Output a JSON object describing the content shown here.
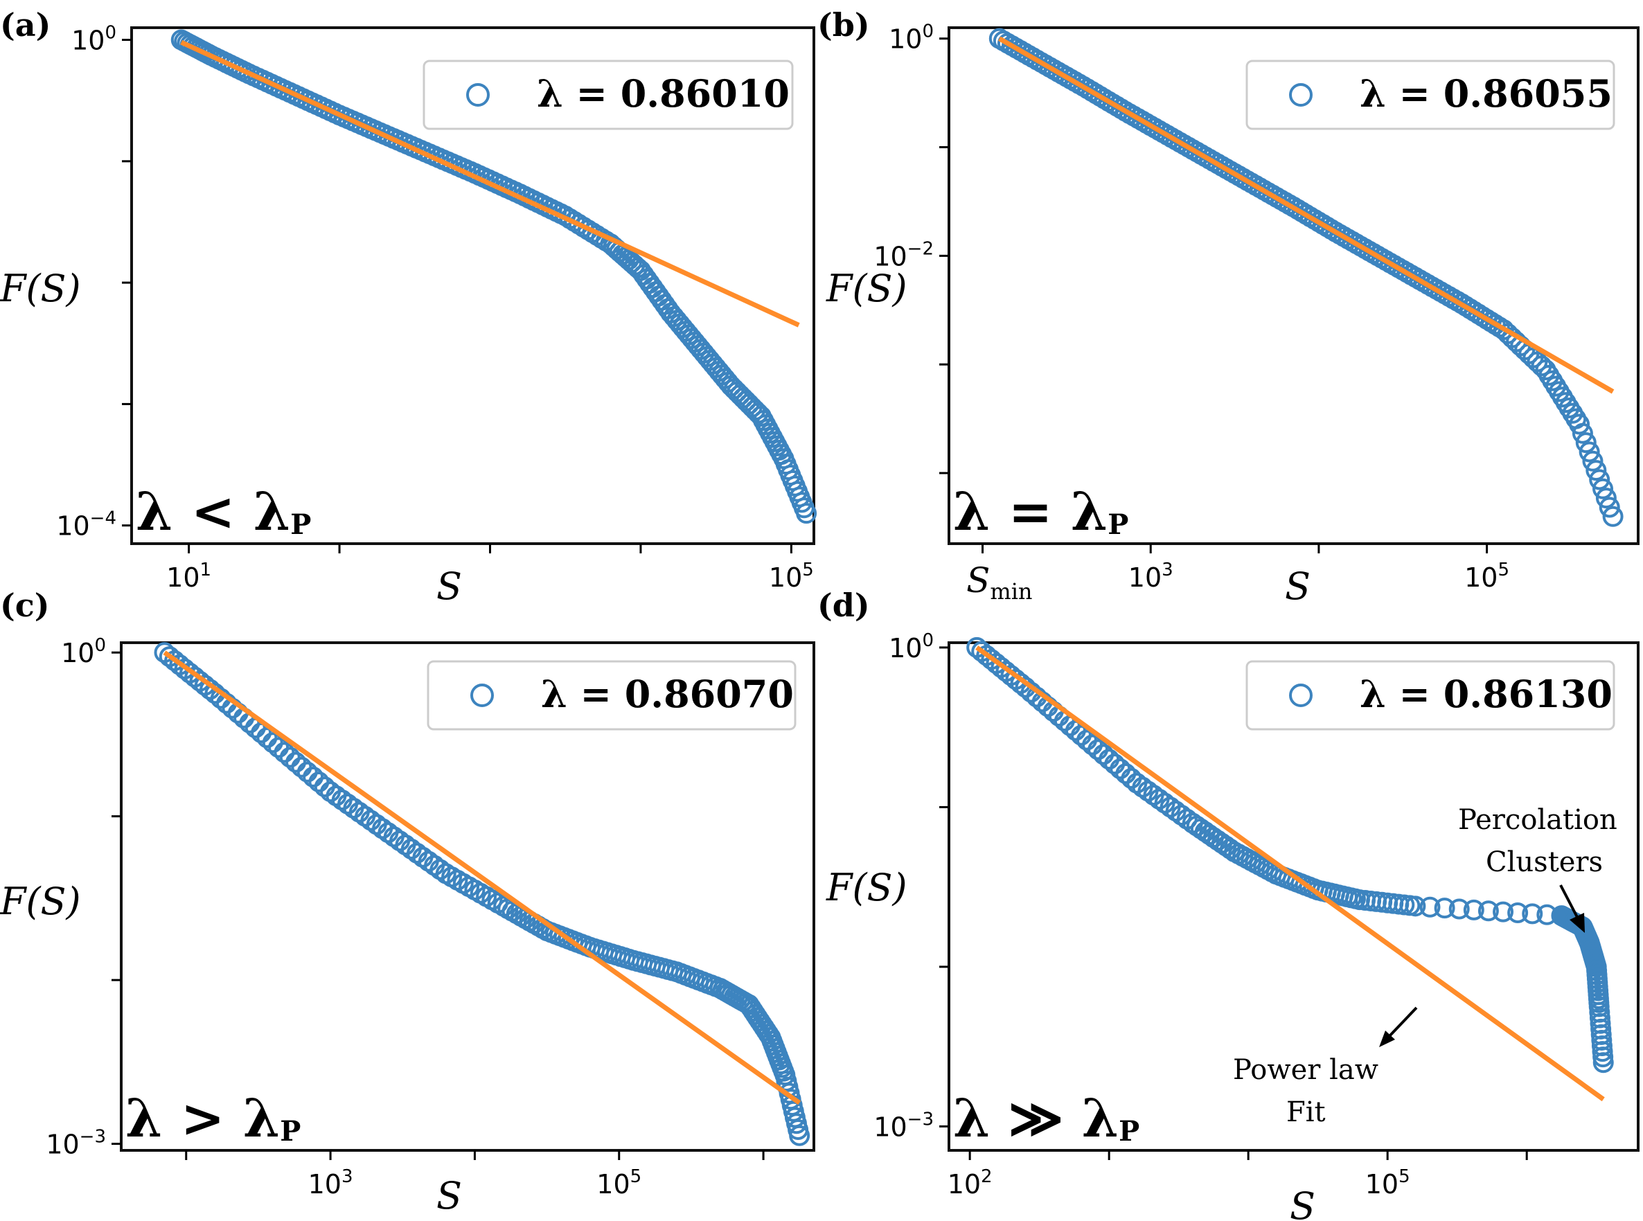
{
  "figure": {
    "colors": {
      "marker": "#3d84bf",
      "fit": "#ff8c2a",
      "frame": "#111111",
      "legend_border": "#cccccc"
    },
    "fit_annotation": [
      "Power law",
      "Fit"
    ],
    "percolation_annotation": [
      "Percolation",
      "Clusters"
    ]
  },
  "chart_data": [
    {
      "panel": "(a)",
      "type": "scatter",
      "xlabel": "S",
      "xlabel_sub": "",
      "ylabel": "F(S)",
      "xscale": "log",
      "yscale": "log",
      "xlim_log10": [
        0.62,
        5.15
      ],
      "ylim_log10": [
        -4.15,
        0.1
      ],
      "xticks": [
        {
          "e": 1,
          "label": "10",
          "sup": "1"
        },
        {
          "e": 5,
          "label": "10",
          "sup": "5"
        }
      ],
      "yticks": [
        {
          "e": 0,
          "label": "10",
          "sup": "0"
        },
        {
          "e": -4,
          "label": "10",
          "sup": "−4"
        }
      ],
      "legend": "λ = 0.86010",
      "regime": {
        "left": "λ",
        "op": "<",
        "right": "λ",
        "sub": "P"
      },
      "fit": {
        "x_log": [
          0.95,
          5.05
        ],
        "y_log": [
          -0.02,
          -2.35
        ]
      },
      "series": {
        "name": "λ = 0.86010",
        "x_log": [
          0.95,
          1.15,
          1.4,
          1.7,
          2.0,
          2.3,
          2.6,
          2.9,
          3.2,
          3.5,
          3.8,
          4.0,
          4.2,
          4.4,
          4.6,
          4.8,
          4.95,
          5.1
        ],
        "y_log": [
          0.0,
          -0.13,
          -0.28,
          -0.45,
          -0.62,
          -0.78,
          -0.94,
          -1.1,
          -1.27,
          -1.45,
          -1.68,
          -1.9,
          -2.25,
          -2.55,
          -2.85,
          -3.1,
          -3.45,
          -3.9
        ]
      }
    },
    {
      "panel": "(b)",
      "type": "scatter",
      "xlabel": "S",
      "xlabel_sub": "",
      "ylabel": "F(S)",
      "xscale": "log",
      "yscale": "log",
      "xlim_log10": [
        1.8,
        5.9
      ],
      "ylim_log10": [
        -4.65,
        0.1
      ],
      "xticks": [
        {
          "e": 3,
          "label": "10",
          "sup": "3"
        },
        {
          "e": 5,
          "label": "10",
          "sup": "5"
        },
        {
          "e": 2.1,
          "label": "S",
          "sub": "min",
          "smin": true
        }
      ],
      "yticks": [
        {
          "e": 0,
          "label": "10",
          "sup": "0"
        },
        {
          "e": -2,
          "label": "10",
          "sup": "−2"
        }
      ],
      "legend": "λ = 0.86055",
      "regime": {
        "left": "λ",
        "op": "=",
        "right": "λ",
        "sub": "P"
      },
      "fit": {
        "x_log": [
          2.1,
          5.75
        ],
        "y_log": [
          0.0,
          -3.25
        ]
      },
      "series": {
        "name": "λ = 0.86055",
        "x_log": [
          2.1,
          2.35,
          2.6,
          2.85,
          3.1,
          3.35,
          3.6,
          3.85,
          4.1,
          4.35,
          4.6,
          4.85,
          5.1,
          5.35,
          5.55,
          5.75
        ],
        "y_log": [
          0.0,
          -0.22,
          -0.44,
          -0.67,
          -0.89,
          -1.11,
          -1.33,
          -1.55,
          -1.78,
          -2.0,
          -2.22,
          -2.44,
          -2.68,
          -3.05,
          -3.55,
          -4.4
        ]
      }
    },
    {
      "panel": "(c)",
      "type": "scatter",
      "xlabel": "S",
      "xlabel_sub": "",
      "ylabel": "F(S)",
      "xscale": "log",
      "yscale": "log",
      "xlim_log10": [
        1.55,
        6.35
      ],
      "ylim_log10": [
        -3.04,
        0.06
      ],
      "xticks": [
        {
          "e": 3,
          "label": "10",
          "sup": "3"
        },
        {
          "e": 5,
          "label": "10",
          "sup": "5"
        }
      ],
      "yticks": [
        {
          "e": 0,
          "label": "10",
          "sup": "0"
        },
        {
          "e": -3,
          "label": "10",
          "sup": "−3"
        }
      ],
      "legend": "λ = 0.86070",
      "regime": {
        "left": "λ",
        "op": ">",
        "right": "λ",
        "sub": "P"
      },
      "fit": {
        "x_log": [
          1.85,
          6.25
        ],
        "y_log": [
          0.0,
          -2.75
        ]
      },
      "series": {
        "name": "λ = 0.86070",
        "x_log": [
          1.85,
          2.2,
          2.6,
          3.0,
          3.4,
          3.8,
          4.2,
          4.5,
          4.8,
          5.1,
          5.4,
          5.7,
          5.9,
          6.05,
          6.15,
          6.25
        ],
        "y_log": [
          0.0,
          -0.25,
          -0.55,
          -0.85,
          -1.1,
          -1.35,
          -1.55,
          -1.7,
          -1.8,
          -1.88,
          -1.95,
          -2.05,
          -2.15,
          -2.35,
          -2.58,
          -2.95
        ]
      }
    },
    {
      "panel": "(d)",
      "type": "scatter",
      "xlabel": "S",
      "xlabel_sub": "",
      "ylabel": "F(S)",
      "xscale": "log",
      "yscale": "log",
      "xlim_log10": [
        1.85,
        6.8
      ],
      "ylim_log10": [
        -3.15,
        0.03
      ],
      "xticks": [
        {
          "e": 2,
          "label": "10",
          "sup": "2"
        },
        {
          "e": 5,
          "label": "10",
          "sup": "5"
        }
      ],
      "yticks": [
        {
          "e": 0,
          "label": "10",
          "sup": "0"
        },
        {
          "e": -3,
          "label": "10",
          "sup": "−3"
        }
      ],
      "legend": "λ = 0.86130",
      "regime": {
        "left": "λ",
        "op": "≫",
        "right": "λ",
        "sub": "P"
      },
      "fit": {
        "x_log": [
          2.05,
          6.55
        ],
        "y_log": [
          0.0,
          -2.83
        ]
      },
      "series": {
        "name": "λ = 0.86130",
        "x_log": [
          2.05,
          2.4,
          2.8,
          3.2,
          3.6,
          3.9,
          4.2,
          4.5,
          4.8,
          5.2,
          6.25,
          6.4,
          6.45,
          6.5,
          6.52,
          6.55
        ],
        "y_log": [
          0.0,
          -0.25,
          -0.55,
          -0.85,
          -1.1,
          -1.28,
          -1.42,
          -1.52,
          -1.58,
          -1.62,
          -1.68,
          -1.75,
          -1.85,
          -2.0,
          -2.25,
          -2.6
        ]
      }
    }
  ]
}
